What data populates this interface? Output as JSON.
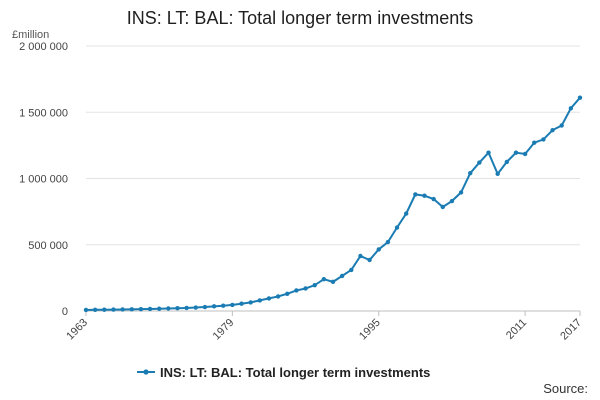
{
  "chart": {
    "title": "INS: LT: BAL: Total longer term investments",
    "unit": "£million",
    "source": "Source:",
    "series_color": "#1a7cb3"
  },
  "chart_data": {
    "type": "line",
    "title": "INS: LT: BAL: Total longer term investments",
    "ylabel": "£million",
    "xlabel": "",
    "ylim": [
      0,
      2000000
    ],
    "xlim": [
      1963,
      2017
    ],
    "yticks": [
      0,
      500000,
      1000000,
      1500000,
      2000000
    ],
    "ytick_labels": [
      "0",
      "500 000",
      "1 000 000",
      "1 500 000",
      "2 000 000"
    ],
    "xticks": [
      1963,
      1979,
      1995,
      2011,
      2017
    ],
    "xtick_labels": [
      "1963",
      "1979",
      "1995",
      "2011",
      "2017"
    ],
    "grid": true,
    "legend_position": "bottom",
    "series": [
      {
        "name": "INS: LT: BAL: Total longer term investments",
        "x": [
          1963,
          1964,
          1965,
          1966,
          1967,
          1968,
          1969,
          1970,
          1971,
          1972,
          1973,
          1974,
          1975,
          1976,
          1977,
          1978,
          1979,
          1980,
          1981,
          1982,
          1983,
          1984,
          1985,
          1986,
          1987,
          1988,
          1989,
          1990,
          1991,
          1992,
          1993,
          1994,
          1995,
          1996,
          1997,
          1998,
          1999,
          2000,
          2001,
          2002,
          2003,
          2004,
          2005,
          2006,
          2007,
          2008,
          2009,
          2010,
          2011,
          2012,
          2013,
          2014,
          2015,
          2016,
          2017
        ],
        "values": [
          8000,
          9000,
          9500,
          10500,
          11500,
          12500,
          14000,
          15500,
          17000,
          19000,
          21000,
          23000,
          26000,
          30000,
          35000,
          40000,
          46000,
          55000,
          65000,
          80000,
          95000,
          110000,
          130000,
          155000,
          170000,
          195000,
          240000,
          220000,
          265000,
          310000,
          415000,
          385000,
          465000,
          520000,
          630000,
          735000,
          880000,
          870000,
          845000,
          785000,
          830000,
          895000,
          1040000,
          1120000,
          1195000,
          1035000,
          1125000,
          1195000,
          1185000,
          1270000,
          1295000,
          1365000,
          1400000,
          1530000,
          1610000
        ]
      }
    ]
  }
}
